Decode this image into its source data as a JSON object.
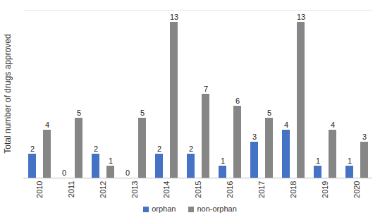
{
  "chart_data": {
    "type": "bar",
    "y_label": "Total number of drugs approved",
    "categories": [
      "2010",
      "2011",
      "2012",
      "2013",
      "2014",
      "2015",
      "2016",
      "2017",
      "2018",
      "2019",
      "2020"
    ],
    "series": [
      {
        "name": "orphan",
        "color": "#4472c4",
        "values": [
          2,
          0,
          2,
          0,
          2,
          2,
          1,
          3,
          4,
          1,
          1
        ]
      },
      {
        "name": "non-orphan",
        "color": "#868686",
        "values": [
          4,
          5,
          1,
          5,
          13,
          7,
          6,
          5,
          13,
          4,
          3
        ]
      }
    ],
    "ylim": [
      0,
      14
    ],
    "tick_labels": "x",
    "data_labels": true,
    "legend": "bottom",
    "grid": false
  }
}
